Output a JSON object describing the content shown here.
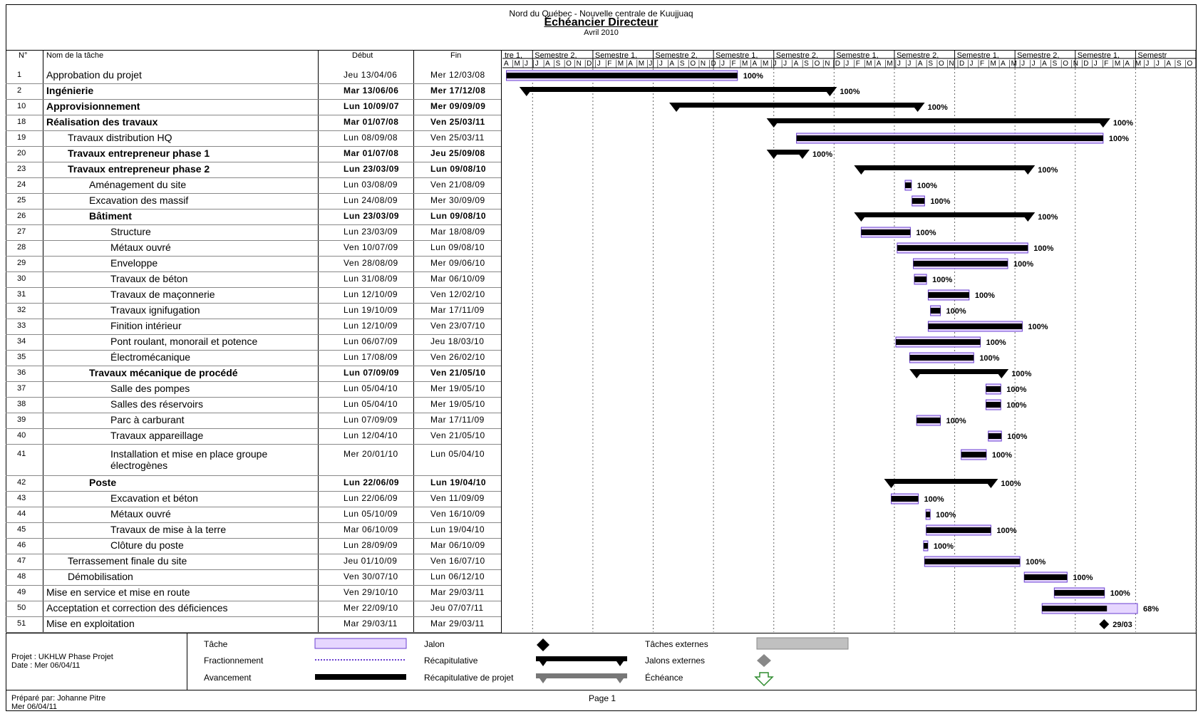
{
  "header": {
    "top_line": "Nord du Québec - Nouvelle centrale de Kuujjuaq",
    "title": "Échéancier Directeur",
    "subtitle": "Avril 2010"
  },
  "table": {
    "col_id": "N°",
    "col_name": "Nom de la tâche",
    "col_start": "Début",
    "col_end": "Fin"
  },
  "timeline": {
    "periods": [
      "tre 1,",
      "Semestre 2,",
      "Semestre 1,",
      "Semestre 2,",
      "Semestre 1,",
      "Semestre 2,",
      "Semestre 1,",
      "Semestre 2,",
      "Semestre 1,",
      "Semestre 2,",
      "Semestre 1,",
      "Semestr"
    ],
    "months": "AMJJASONDJFMAMJJASONDJFMAMJJASONDJFMAMJJASONDJFMAMJJASONDJFMAMJJASO"
  },
  "tasks": [
    {
      "id": "1",
      "name": "Approbation du projet",
      "start": "Jeu 13/04/06",
      "end": "Mer 12/03/08",
      "level": 0,
      "bold": false,
      "pct": "100%"
    },
    {
      "id": "2",
      "name": "Ingénierie",
      "start": "Mar 13/06/06",
      "end": "Mer 17/12/08",
      "level": 0,
      "bold": true,
      "pct": "100%"
    },
    {
      "id": "10",
      "name": "Approvisionnement",
      "start": "Lun 10/09/07",
      "end": "Mer 09/09/09",
      "level": 0,
      "bold": true,
      "pct": "100%"
    },
    {
      "id": "18",
      "name": "Réalisation des travaux",
      "start": "Mar 01/07/08",
      "end": "Ven 25/03/11",
      "level": 0,
      "bold": true,
      "pct": "100%"
    },
    {
      "id": "19",
      "name": "Travaux distribution HQ",
      "start": "Lun 08/09/08",
      "end": "Ven 25/03/11",
      "level": 1,
      "bold": false,
      "pct": "100%"
    },
    {
      "id": "20",
      "name": "Travaux entrepreneur phase 1",
      "start": "Mar 01/07/08",
      "end": "Jeu 25/09/08",
      "level": 1,
      "bold": true,
      "pct": "100%"
    },
    {
      "id": "23",
      "name": "Travaux entrepreneur phase 2",
      "start": "Lun 23/03/09",
      "end": "Lun 09/08/10",
      "level": 1,
      "bold": true,
      "pct": "100%"
    },
    {
      "id": "24",
      "name": "Aménagement du site",
      "start": "Lun 03/08/09",
      "end": "Ven 21/08/09",
      "level": 2,
      "bold": false,
      "pct": "100%"
    },
    {
      "id": "25",
      "name": "Excavation des massif",
      "start": "Lun 24/08/09",
      "end": "Mer 30/09/09",
      "level": 2,
      "bold": false,
      "pct": "100%"
    },
    {
      "id": "26",
      "name": "Bâtiment",
      "start": "Lun 23/03/09",
      "end": "Lun 09/08/10",
      "level": 2,
      "bold": true,
      "pct": "100%"
    },
    {
      "id": "27",
      "name": "Structure",
      "start": "Lun 23/03/09",
      "end": "Mar 18/08/09",
      "level": 3,
      "bold": false,
      "pct": "100%"
    },
    {
      "id": "28",
      "name": "Métaux ouvré",
      "start": "Ven 10/07/09",
      "end": "Lun 09/08/10",
      "level": 3,
      "bold": false,
      "pct": "100%"
    },
    {
      "id": "29",
      "name": "Enveloppe",
      "start": "Ven 28/08/09",
      "end": "Mer 09/06/10",
      "level": 3,
      "bold": false,
      "pct": "100%"
    },
    {
      "id": "30",
      "name": "Travaux de béton",
      "start": "Lun 31/08/09",
      "end": "Mar 06/10/09",
      "level": 3,
      "bold": false,
      "pct": "100%"
    },
    {
      "id": "31",
      "name": "Travaux de maçonnerie",
      "start": "Lun 12/10/09",
      "end": "Ven 12/02/10",
      "level": 3,
      "bold": false,
      "pct": "100%"
    },
    {
      "id": "32",
      "name": "Travaux ignifugation",
      "start": "Lun 19/10/09",
      "end": "Mar 17/11/09",
      "level": 3,
      "bold": false,
      "pct": "100%"
    },
    {
      "id": "33",
      "name": "Finition intérieur",
      "start": "Lun 12/10/09",
      "end": "Ven 23/07/10",
      "level": 3,
      "bold": false,
      "pct": "100%"
    },
    {
      "id": "34",
      "name": "Pont roulant, monorail et potence",
      "start": "Lun 06/07/09",
      "end": "Jeu 18/03/10",
      "level": 3,
      "bold": false,
      "pct": "100%"
    },
    {
      "id": "35",
      "name": "Électromécanique",
      "start": "Lun 17/08/09",
      "end": "Ven 26/02/10",
      "level": 3,
      "bold": false,
      "pct": "100%"
    },
    {
      "id": "36",
      "name": "Travaux mécanique de procédé",
      "start": "Lun 07/09/09",
      "end": "Ven 21/05/10",
      "level": 2,
      "bold": true,
      "pct": "100%"
    },
    {
      "id": "37",
      "name": "Salle des pompes",
      "start": "Lun 05/04/10",
      "end": "Mer 19/05/10",
      "level": 3,
      "bold": false,
      "pct": "100%"
    },
    {
      "id": "38",
      "name": "Salles des réservoirs",
      "start": "Lun 05/04/10",
      "end": "Mer 19/05/10",
      "level": 3,
      "bold": false,
      "pct": "100%"
    },
    {
      "id": "39",
      "name": "Parc à carburant",
      "start": "Lun 07/09/09",
      "end": "Mar 17/11/09",
      "level": 3,
      "bold": false,
      "pct": "100%"
    },
    {
      "id": "40",
      "name": "Travaux appareillage",
      "start": "Lun 12/04/10",
      "end": "Ven 21/05/10",
      "level": 3,
      "bold": false,
      "pct": "100%"
    },
    {
      "id": "41",
      "name": "Installation et mise en place groupe",
      "name2": "électrogènes",
      "start": "Mer 20/01/10",
      "end": "Lun 05/04/10",
      "level": 3,
      "bold": false,
      "pct": "100%"
    },
    {
      "id": "42",
      "name": "Poste",
      "start": "Lun 22/06/09",
      "end": "Lun 19/04/10",
      "level": 2,
      "bold": true,
      "pct": "100%"
    },
    {
      "id": "43",
      "name": "Excavation et béton",
      "start": "Lun 22/06/09",
      "end": "Ven 11/09/09",
      "level": 3,
      "bold": false,
      "pct": "100%"
    },
    {
      "id": "44",
      "name": "Métaux ouvré",
      "start": "Lun 05/10/09",
      "end": "Ven 16/10/09",
      "level": 3,
      "bold": false,
      "pct": "100%"
    },
    {
      "id": "45",
      "name": "Travaux de mise à la terre",
      "start": "Mar 06/10/09",
      "end": "Lun 19/04/10",
      "level": 3,
      "bold": false,
      "pct": "100%"
    },
    {
      "id": "46",
      "name": "Clôture du poste",
      "start": "Lun 28/09/09",
      "end": "Mar 06/10/09",
      "level": 3,
      "bold": false,
      "pct": "100%"
    },
    {
      "id": "47",
      "name": "Terrassement finale du site",
      "start": "Jeu 01/10/09",
      "end": "Ven 16/07/10",
      "level": 1,
      "bold": false,
      "pct": "100%"
    },
    {
      "id": "48",
      "name": "Démobilisation",
      "start": "Ven 30/07/10",
      "end": "Lun 06/12/10",
      "level": 1,
      "bold": false,
      "pct": "100%"
    },
    {
      "id": "49",
      "name": "Mise en service et mise en route",
      "start": "Ven 29/10/10",
      "end": "Mar 29/03/11",
      "level": 0,
      "bold": false,
      "pct": "100%"
    },
    {
      "id": "50",
      "name": "Acceptation et correction des déficiences",
      "start": "Mer 22/09/10",
      "end": "Jeu 07/07/11",
      "level": 0,
      "bold": false,
      "pct": "68%"
    },
    {
      "id": "51",
      "name": "Mise en exploitation",
      "start": "Mar 29/03/11",
      "end": "Mar 29/03/11",
      "level": 0,
      "bold": false,
      "pct": "29/03"
    }
  ],
  "legend": {
    "project": "Projet : UKHLW Phase Projet",
    "date": "Date : Mer 06/04/11",
    "items": [
      "Tâche",
      "Fractionnement",
      "Avancement",
      "Jalon",
      "Récapitulative",
      "Récapitulative de projet",
      "Tâches externes",
      "Jalons externes",
      "Échéance"
    ]
  },
  "footer": {
    "prepared_by": "Préparé par: Johanne Pitre",
    "prepared_date": "Mer 06/04/11",
    "page": "Page 1"
  },
  "colors": {
    "task_fill": "#e6d6ff",
    "task_border": "#6a3fd0",
    "progress": "#000000",
    "external": "#c0c0c0",
    "deadline": "#2e8b2e"
  }
}
